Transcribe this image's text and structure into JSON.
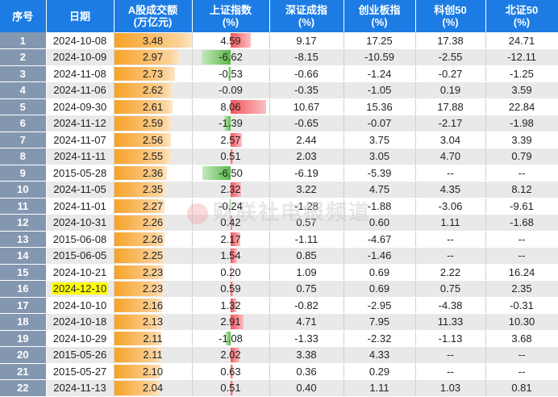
{
  "headers": {
    "idx": "序号",
    "date": "日期",
    "vol": "A股成交额",
    "vol_unit": "(万亿元)",
    "sh": "上证指数",
    "sz": "深证成指",
    "cy": "创业板指",
    "kc": "科创50",
    "bz": "北证50",
    "pct": "(%)"
  },
  "watermark": "财联社电报频道",
  "highlight_color": "#ffff00",
  "rows": [
    {
      "idx": "1",
      "date": "2024-10-08",
      "vol": "3.48",
      "sh": "4.59",
      "sz": "9.17",
      "cy": "17.25",
      "kc": "17.38",
      "bz": "24.71"
    },
    {
      "idx": "2",
      "date": "2024-10-09",
      "vol": "2.97",
      "sh": "-6.62",
      "sz": "-8.15",
      "cy": "-10.59",
      "kc": "-2.55",
      "bz": "-12.11"
    },
    {
      "idx": "3",
      "date": "2024-11-08",
      "vol": "2.73",
      "sh": "-0.53",
      "sz": "-0.66",
      "cy": "-1.24",
      "kc": "-0.27",
      "bz": "-1.25"
    },
    {
      "idx": "4",
      "date": "2024-11-06",
      "vol": "2.62",
      "sh": "-0.09",
      "sz": "-0.35",
      "cy": "-1.05",
      "kc": "0.19",
      "bz": "3.59"
    },
    {
      "idx": "5",
      "date": "2024-09-30",
      "vol": "2.61",
      "sh": "8.06",
      "sz": "10.67",
      "cy": "15.36",
      "kc": "17.88",
      "bz": "22.84"
    },
    {
      "idx": "6",
      "date": "2024-11-12",
      "vol": "2.59",
      "sh": "-1.39",
      "sz": "-0.65",
      "cy": "-0.07",
      "kc": "-2.17",
      "bz": "-1.98"
    },
    {
      "idx": "7",
      "date": "2024-11-07",
      "vol": "2.56",
      "sh": "2.57",
      "sz": "2.44",
      "cy": "3.75",
      "kc": "3.04",
      "bz": "3.39"
    },
    {
      "idx": "8",
      "date": "2024-11-11",
      "vol": "2.55",
      "sh": "0.51",
      "sz": "2.03",
      "cy": "3.05",
      "kc": "4.70",
      "bz": "0.79"
    },
    {
      "idx": "9",
      "date": "2015-05-28",
      "vol": "2.36",
      "sh": "-6.50",
      "sz": "-6.19",
      "cy": "-5.39",
      "kc": "--",
      "bz": "--"
    },
    {
      "idx": "10",
      "date": "2024-11-05",
      "vol": "2.35",
      "sh": "2.32",
      "sz": "3.22",
      "cy": "4.75",
      "kc": "4.35",
      "bz": "8.12"
    },
    {
      "idx": "11",
      "date": "2024-11-01",
      "vol": "2.27",
      "sh": "-0.24",
      "sz": "-1.28",
      "cy": "-1.88",
      "kc": "-3.06",
      "bz": "-9.61"
    },
    {
      "idx": "12",
      "date": "2024-10-31",
      "vol": "2.26",
      "sh": "0.42",
      "sz": "0.57",
      "cy": "0.60",
      "kc": "1.11",
      "bz": "-1.68"
    },
    {
      "idx": "13",
      "date": "2015-06-08",
      "vol": "2.26",
      "sh": "2.17",
      "sz": "-1.11",
      "cy": "-4.67",
      "kc": "--",
      "bz": "--"
    },
    {
      "idx": "14",
      "date": "2015-06-05",
      "vol": "2.25",
      "sh": "1.54",
      "sz": "0.85",
      "cy": "-1.46",
      "kc": "--",
      "bz": "--"
    },
    {
      "idx": "15",
      "date": "2024-10-21",
      "vol": "2.23",
      "sh": "0.20",
      "sz": "1.09",
      "cy": "0.69",
      "kc": "2.22",
      "bz": "16.24"
    },
    {
      "idx": "16",
      "date": "2024-12-10",
      "vol": "2.23",
      "sh": "0.59",
      "sz": "0.75",
      "cy": "0.69",
      "kc": "0.75",
      "bz": "2.35",
      "highlight": true
    },
    {
      "idx": "17",
      "date": "2024-10-10",
      "vol": "2.16",
      "sh": "1.32",
      "sz": "-0.82",
      "cy": "-2.95",
      "kc": "-4.38",
      "bz": "-0.31"
    },
    {
      "idx": "18",
      "date": "2024-10-18",
      "vol": "2.13",
      "sh": "2.91",
      "sz": "4.71",
      "cy": "7.95",
      "kc": "11.33",
      "bz": "10.30"
    },
    {
      "idx": "19",
      "date": "2024-10-29",
      "vol": "2.11",
      "sh": "-1.08",
      "sz": "-1.33",
      "cy": "-2.32",
      "kc": "-1.13",
      "bz": "3.68"
    },
    {
      "idx": "20",
      "date": "2015-05-26",
      "vol": "2.11",
      "sh": "2.02",
      "sz": "3.38",
      "cy": "4.33",
      "kc": "--",
      "bz": "--"
    },
    {
      "idx": "21",
      "date": "2015-05-27",
      "vol": "2.10",
      "sh": "0.63",
      "sz": "0.36",
      "cy": "0.29",
      "kc": "--",
      "bz": "--"
    },
    {
      "idx": "22",
      "date": "2024-11-13",
      "vol": "2.04",
      "sh": "0.51",
      "sz": "0.40",
      "cy": "1.11",
      "kc": "1.03",
      "bz": "0.81"
    }
  ]
}
